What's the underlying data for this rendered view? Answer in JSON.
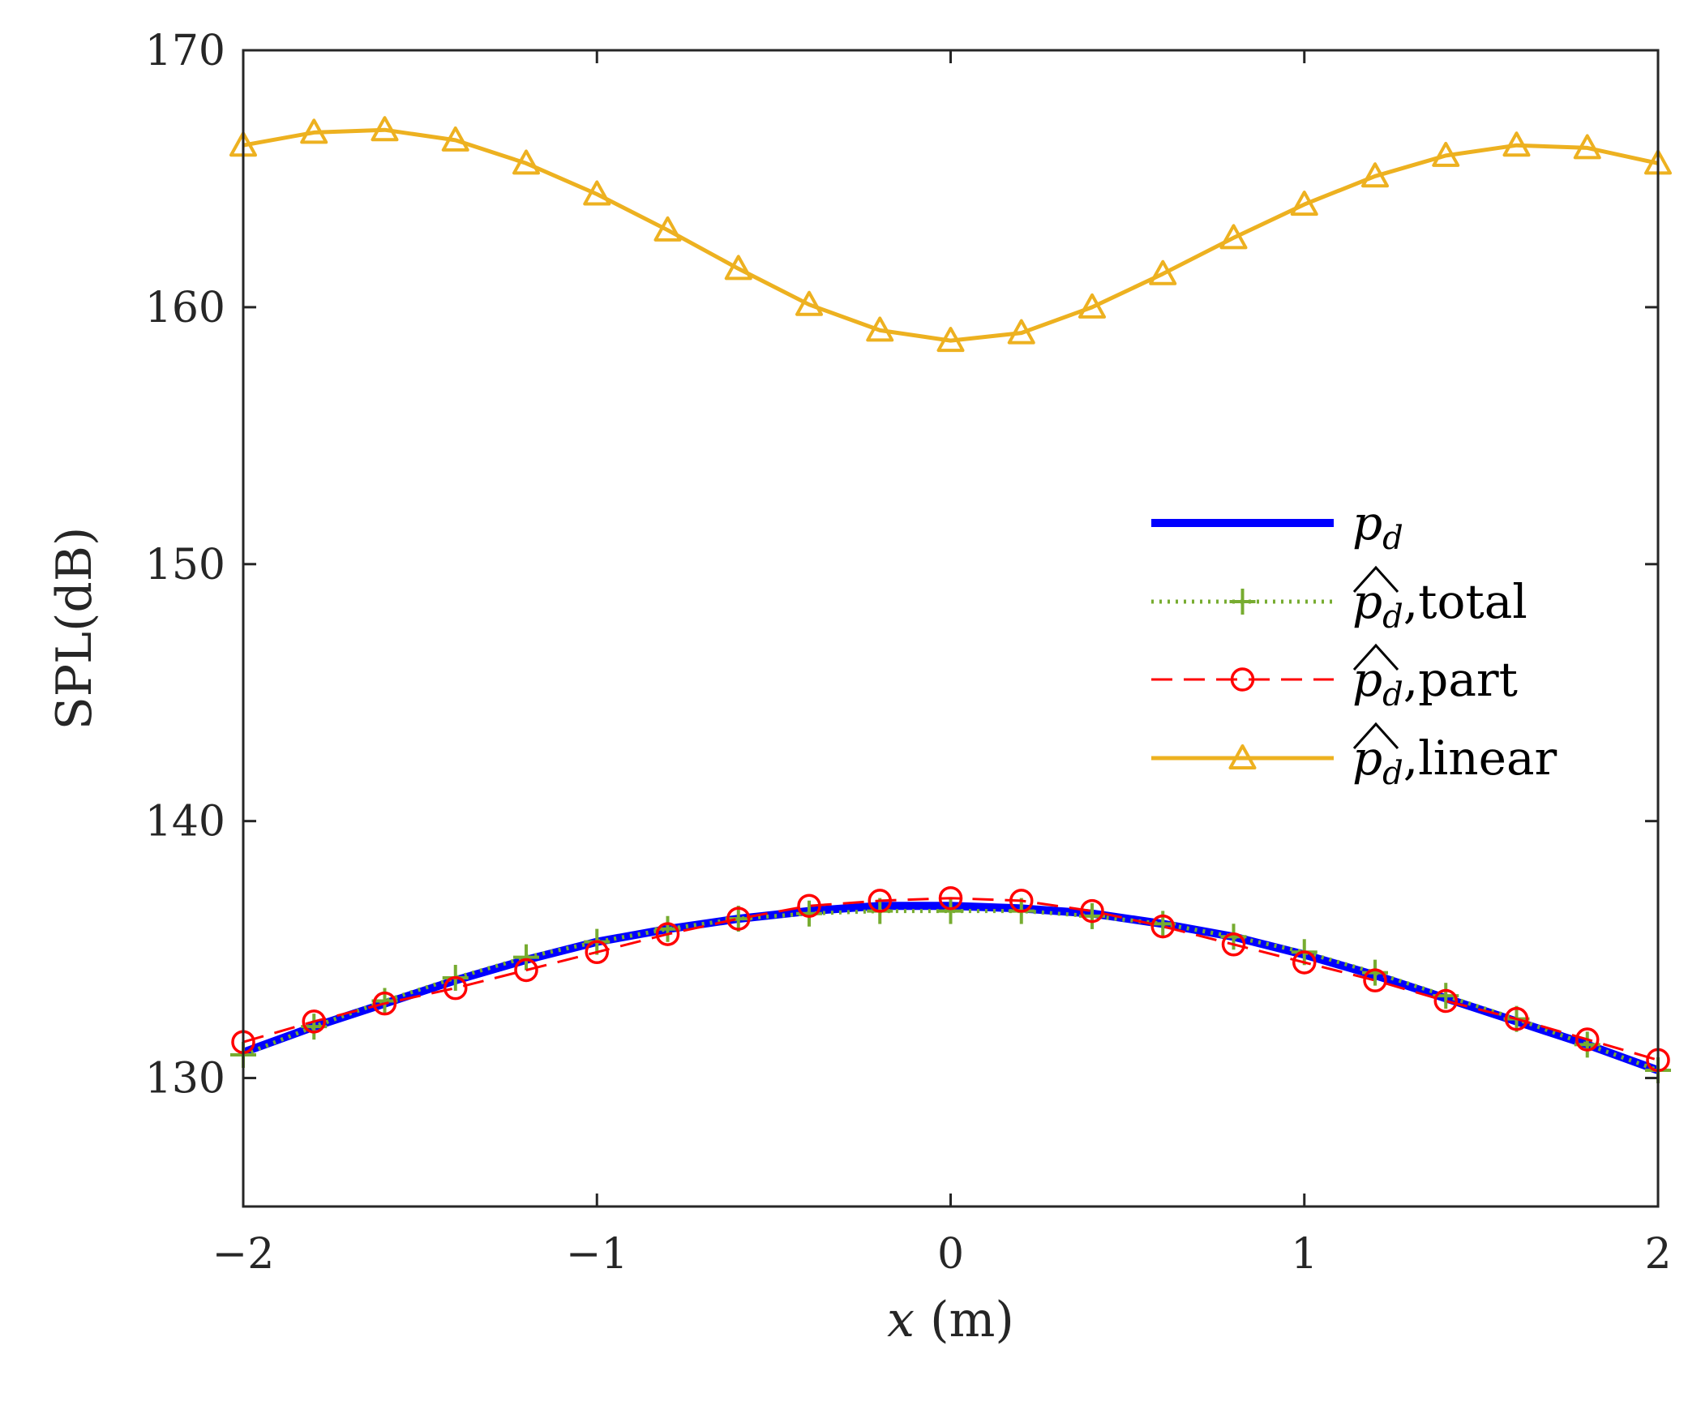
{
  "chart_data": {
    "type": "line",
    "title": "",
    "xlabel": "x",
    "xlabel_unit": "(m)",
    "ylabel": "SPL(dB)",
    "xlim": [
      -2,
      2
    ],
    "ylim": [
      125,
      170
    ],
    "xticks": [
      -2,
      -1,
      0,
      1,
      2
    ],
    "xtick_labels": [
      "−2",
      "−1",
      "0",
      "1",
      "2"
    ],
    "yticks": [
      130,
      140,
      150,
      160,
      170
    ],
    "ytick_labels": [
      "130",
      "140",
      "150",
      "160",
      "170"
    ],
    "grid": false,
    "legend_position": "right",
    "x": [
      -2.0,
      -1.8,
      -1.6,
      -1.4,
      -1.2,
      -1.0,
      -0.8,
      -0.6,
      -0.4,
      -0.2,
      0.0,
      0.2,
      0.4,
      0.6,
      0.8,
      1.0,
      1.2,
      1.4,
      1.6,
      1.8,
      2.0
    ],
    "series": [
      {
        "name": "p_d",
        "legend_main": "p",
        "legend_sub": "d",
        "legend_suffix": "",
        "hat": false,
        "color": "#0000ff",
        "style": "solid",
        "width": 10,
        "marker": "none",
        "values": [
          131.0,
          132.0,
          132.9,
          133.8,
          134.6,
          135.3,
          135.8,
          136.2,
          136.5,
          136.7,
          136.7,
          136.6,
          136.4,
          136.0,
          135.5,
          134.8,
          134.0,
          133.1,
          132.2,
          131.3,
          130.3
        ]
      },
      {
        "name": "p_d hat, total",
        "legend_main": "p",
        "legend_sub": "d",
        "legend_suffix": ",total",
        "hat": true,
        "color": "#77ac30",
        "style": "dotted",
        "width": 5,
        "marker": "plus",
        "values": [
          130.9,
          132.0,
          133.0,
          133.9,
          134.7,
          135.3,
          135.8,
          136.2,
          136.4,
          136.5,
          136.5,
          136.5,
          136.3,
          136.0,
          135.5,
          134.9,
          134.1,
          133.2,
          132.3,
          131.3,
          130.3
        ]
      },
      {
        "name": "p_d hat, part",
        "legend_main": "p",
        "legend_sub": "d",
        "legend_suffix": ",part",
        "hat": true,
        "color": "#ff0000",
        "style": "dashed",
        "width": 3,
        "marker": "circle",
        "values": [
          131.4,
          132.2,
          132.9,
          133.5,
          134.2,
          134.9,
          135.6,
          136.2,
          136.7,
          136.9,
          137.0,
          136.9,
          136.5,
          135.9,
          135.2,
          134.5,
          133.8,
          133.0,
          132.3,
          131.5,
          130.7
        ]
      },
      {
        "name": "p_d hat, linear",
        "legend_main": "p",
        "legend_sub": "d",
        "legend_suffix": ",linear",
        "hat": true,
        "color": "#edb120",
        "style": "solid",
        "width": 5,
        "marker": "triangle",
        "values": [
          166.3,
          166.8,
          166.9,
          166.5,
          165.6,
          164.4,
          163.0,
          161.5,
          160.1,
          159.1,
          158.7,
          159.0,
          160.0,
          161.3,
          162.7,
          164.0,
          165.1,
          165.9,
          166.3,
          166.2,
          165.6
        ]
      }
    ]
  }
}
